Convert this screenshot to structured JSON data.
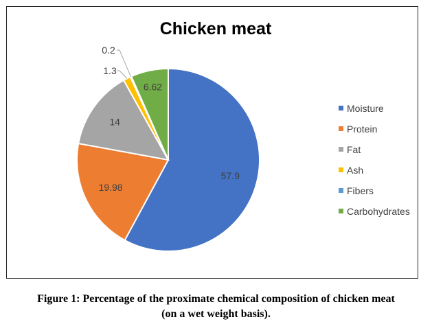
{
  "chart_data": {
    "type": "pie",
    "title": "Chicken meat",
    "categories": [
      "Moisture",
      "Protein",
      "Fat",
      "Ash",
      "Fibers",
      "Carbohydrates"
    ],
    "values": [
      57.9,
      19.98,
      14,
      1.3,
      0.2,
      6.62
    ],
    "value_labels": [
      "57.9",
      "19.98",
      "14",
      "1.3",
      "0.2",
      "6.62"
    ],
    "colors": [
      "#4472C4",
      "#ED7D31",
      "#A5A5A5",
      "#FFC000",
      "#5B9BD5",
      "#70AD47"
    ],
    "legend_position": "right"
  },
  "caption": {
    "line1": "Figure 1: Percentage of the proximate chemical composition of chicken meat",
    "line2": "(on a wet weight basis)."
  }
}
